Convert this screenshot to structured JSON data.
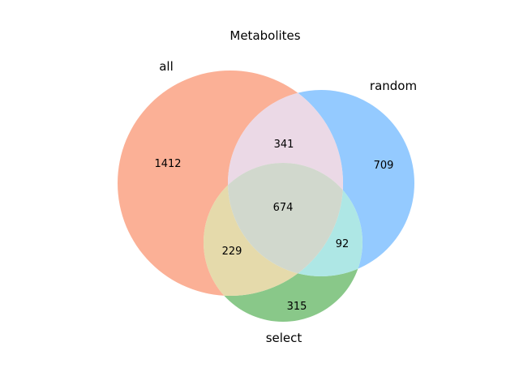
{
  "chart_data": {
    "type": "venn",
    "title": "Metabolites",
    "sets": [
      {
        "name": "all",
        "color": "#f97c50",
        "size": 2656
      },
      {
        "name": "random",
        "color": "#4da6ff",
        "size": 1816
      },
      {
        "name": "select",
        "color": "#3aa33a",
        "size": 1310
      }
    ],
    "regions": [
      {
        "sets": [
          "all"
        ],
        "value": 1412
      },
      {
        "sets": [
          "random"
        ],
        "value": 709
      },
      {
        "sets": [
          "select"
        ],
        "value": 315
      },
      {
        "sets": [
          "all",
          "random"
        ],
        "value": 341
      },
      {
        "sets": [
          "all",
          "select"
        ],
        "value": 229
      },
      {
        "sets": [
          "random",
          "select"
        ],
        "value": 92
      },
      {
        "sets": [
          "all",
          "random",
          "select"
        ],
        "value": 674
      }
    ],
    "colors": {
      "all": "#f97c50",
      "random": "#4da6ff",
      "select": "#3aa33a",
      "all_random": "#e8d2e2",
      "all_select": "#e0d49c",
      "random_select": "#a0e3e0",
      "all_random_select": "#c9d1c4"
    }
  }
}
